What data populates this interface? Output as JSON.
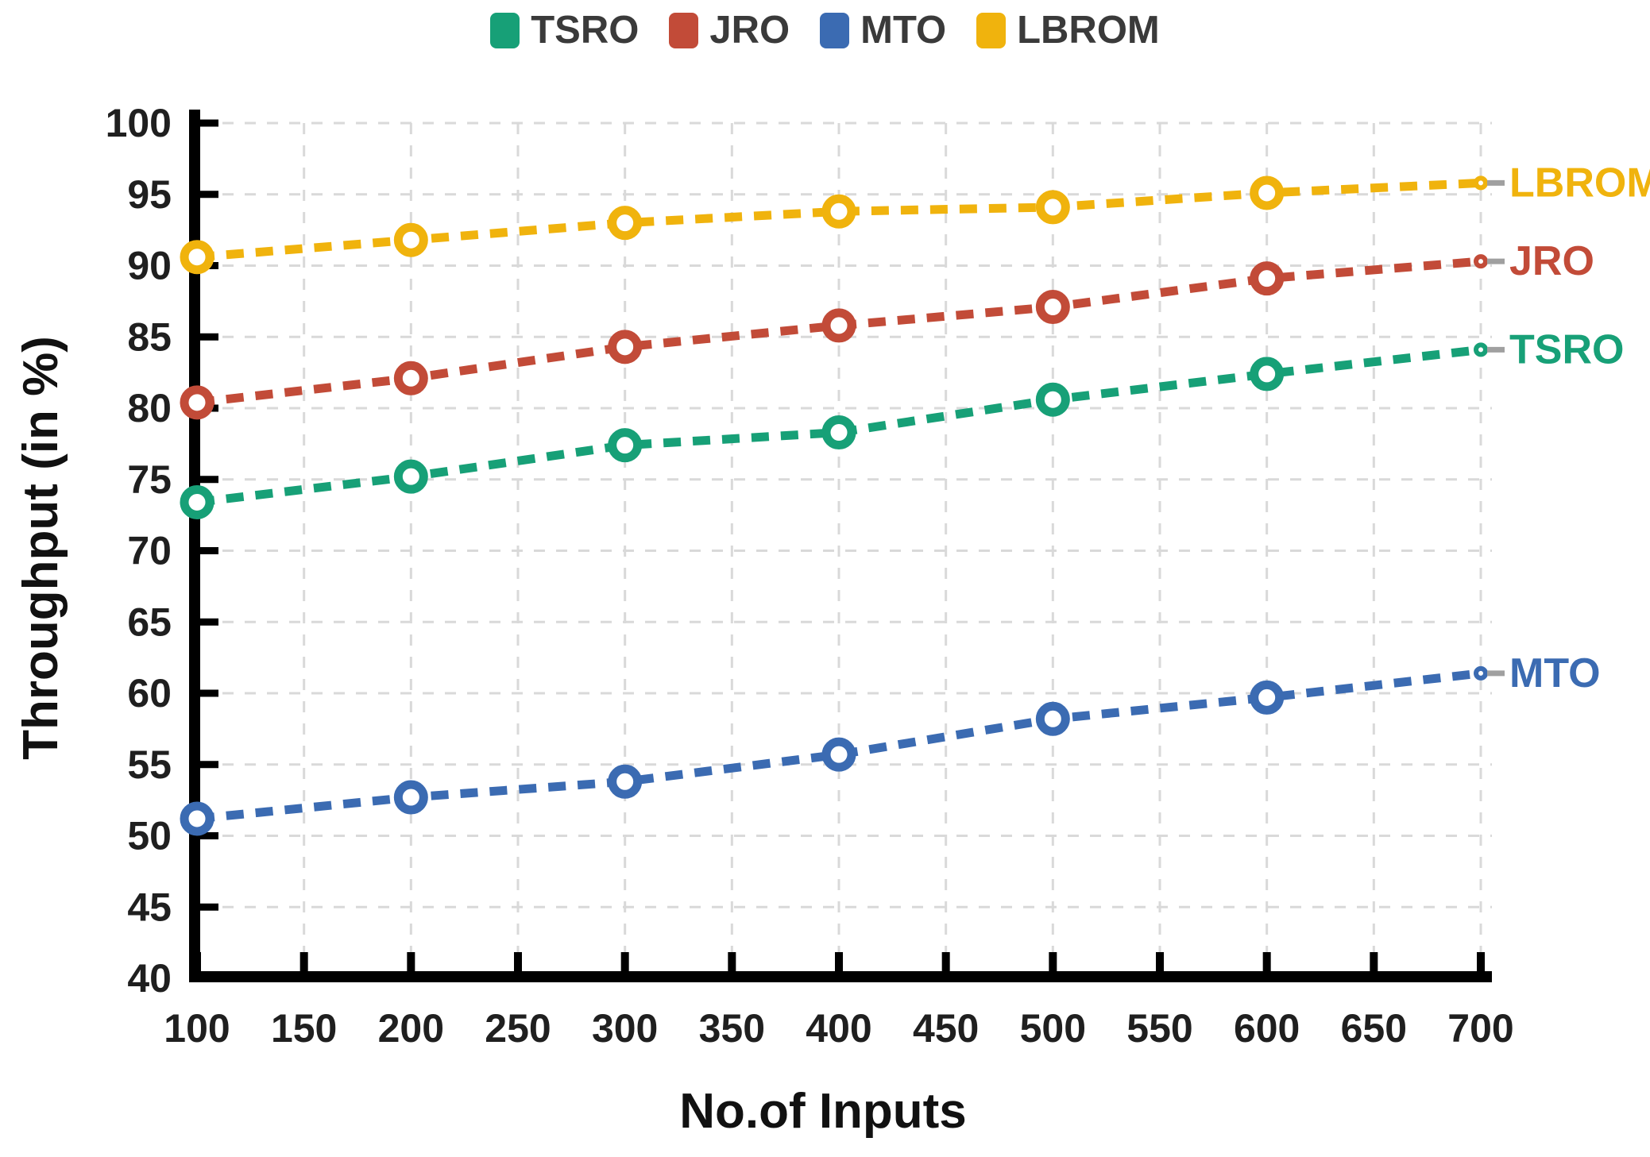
{
  "legend": {
    "items": [
      {
        "label": "TSRO",
        "color": "#17A077"
      },
      {
        "label": "JRO",
        "color": "#C24B38"
      },
      {
        "label": "MTO",
        "color": "#3B6BB2"
      },
      {
        "label": "LBROM",
        "color": "#F0B30D"
      }
    ]
  },
  "chart_data": {
    "type": "line",
    "title": "",
    "xlabel": "No.of Inputs",
    "ylabel": "Throughput (in %)",
    "x": [
      100,
      200,
      300,
      400,
      500,
      600,
      700
    ],
    "xticks": [
      100,
      150,
      200,
      250,
      300,
      350,
      400,
      450,
      500,
      550,
      600,
      650,
      700
    ],
    "yticks": [
      40,
      45,
      50,
      55,
      60,
      65,
      70,
      75,
      80,
      85,
      90,
      95,
      100
    ],
    "xlim": [
      100,
      700
    ],
    "ylim": [
      40,
      100
    ],
    "grid": true,
    "grid_color": "#d9d9d9",
    "axis_color": "#000000",
    "tick_label_color": "#1f1f1f",
    "leader_color": "#a0a0a0",
    "line_style": "dashed",
    "marker": "open-circle",
    "legend_position": "top",
    "series": [
      {
        "name": "TSRO",
        "color": "#17A077",
        "values": [
          73.4,
          75.2,
          77.4,
          78.3,
          80.6,
          82.4,
          84.1
        ]
      },
      {
        "name": "JRO",
        "color": "#C24B38",
        "values": [
          80.4,
          82.1,
          84.3,
          85.8,
          87.1,
          89.1,
          90.3
        ]
      },
      {
        "name": "MTO",
        "color": "#3B6BB2",
        "values": [
          51.2,
          52.7,
          53.8,
          55.7,
          58.2,
          59.7,
          61.4
        ]
      },
      {
        "name": "LBROM",
        "color": "#F0B30D",
        "values": [
          90.6,
          91.8,
          93.0,
          93.8,
          94.1,
          95.1,
          95.8
        ]
      }
    ]
  }
}
